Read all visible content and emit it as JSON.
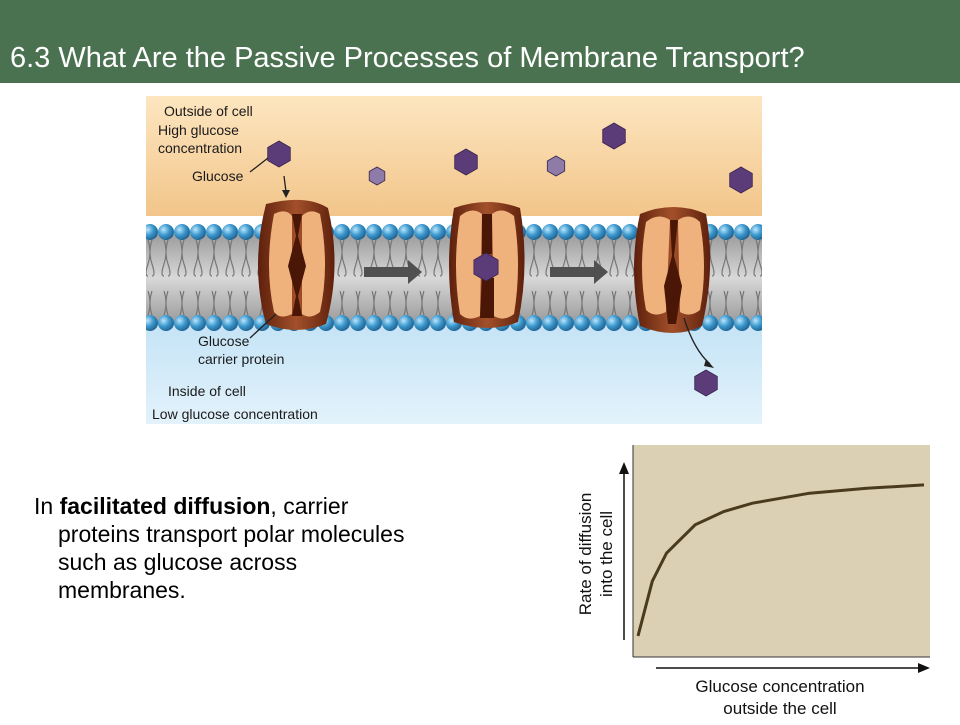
{
  "slide": {
    "title": "6.3 What Are the Passive Processes of Membrane Transport?"
  },
  "figure": {
    "labels": {
      "outside_line1": "Outside of cell",
      "outside_line2": "High glucose",
      "outside_line3": "concentration",
      "glucose": "Glucose",
      "carrier_line1": "Glucose",
      "carrier_line2": "carrier protein",
      "inside_line1": "Inside of cell",
      "inside_line2": "Low glucose concentration"
    },
    "colors": {
      "outside_bg": "#f6d39a",
      "inside_bg": "#c9e6f6",
      "lipid_head": "#3d9bd0",
      "protein": "#8a3a1c",
      "protein_inner": "#f0b27c",
      "glucose": "#5b3c78",
      "glucose_light": "#8f7ba7"
    }
  },
  "body": {
    "prefix": "In ",
    "bold": "facilitated diffusion",
    "line1_suffix": ", carrier",
    "line2": "proteins transport polar molecules",
    "line3": "such as glucose across",
    "line4": "membranes."
  },
  "chart_data": {
    "type": "line",
    "title": "",
    "xlabel_line1": "Glucose concentration",
    "xlabel_line2": "outside the cell",
    "ylabel_line1": "Rate of diffusion",
    "ylabel_line2": "into the cell",
    "series": [
      {
        "x": [
          0.0,
          0.05,
          0.1,
          0.2,
          0.3,
          0.4,
          0.5,
          0.6,
          0.7,
          0.8,
          0.9,
          1.0
        ],
        "y": [
          0.0,
          0.33,
          0.5,
          0.67,
          0.75,
          0.8,
          0.83,
          0.86,
          0.875,
          0.89,
          0.9,
          0.91
        ]
      }
    ],
    "xlim": [
      0,
      1
    ],
    "ylim": [
      0,
      1
    ],
    "grid": false,
    "background": "#dbd0b3",
    "line_color": "#4a3b1f"
  }
}
